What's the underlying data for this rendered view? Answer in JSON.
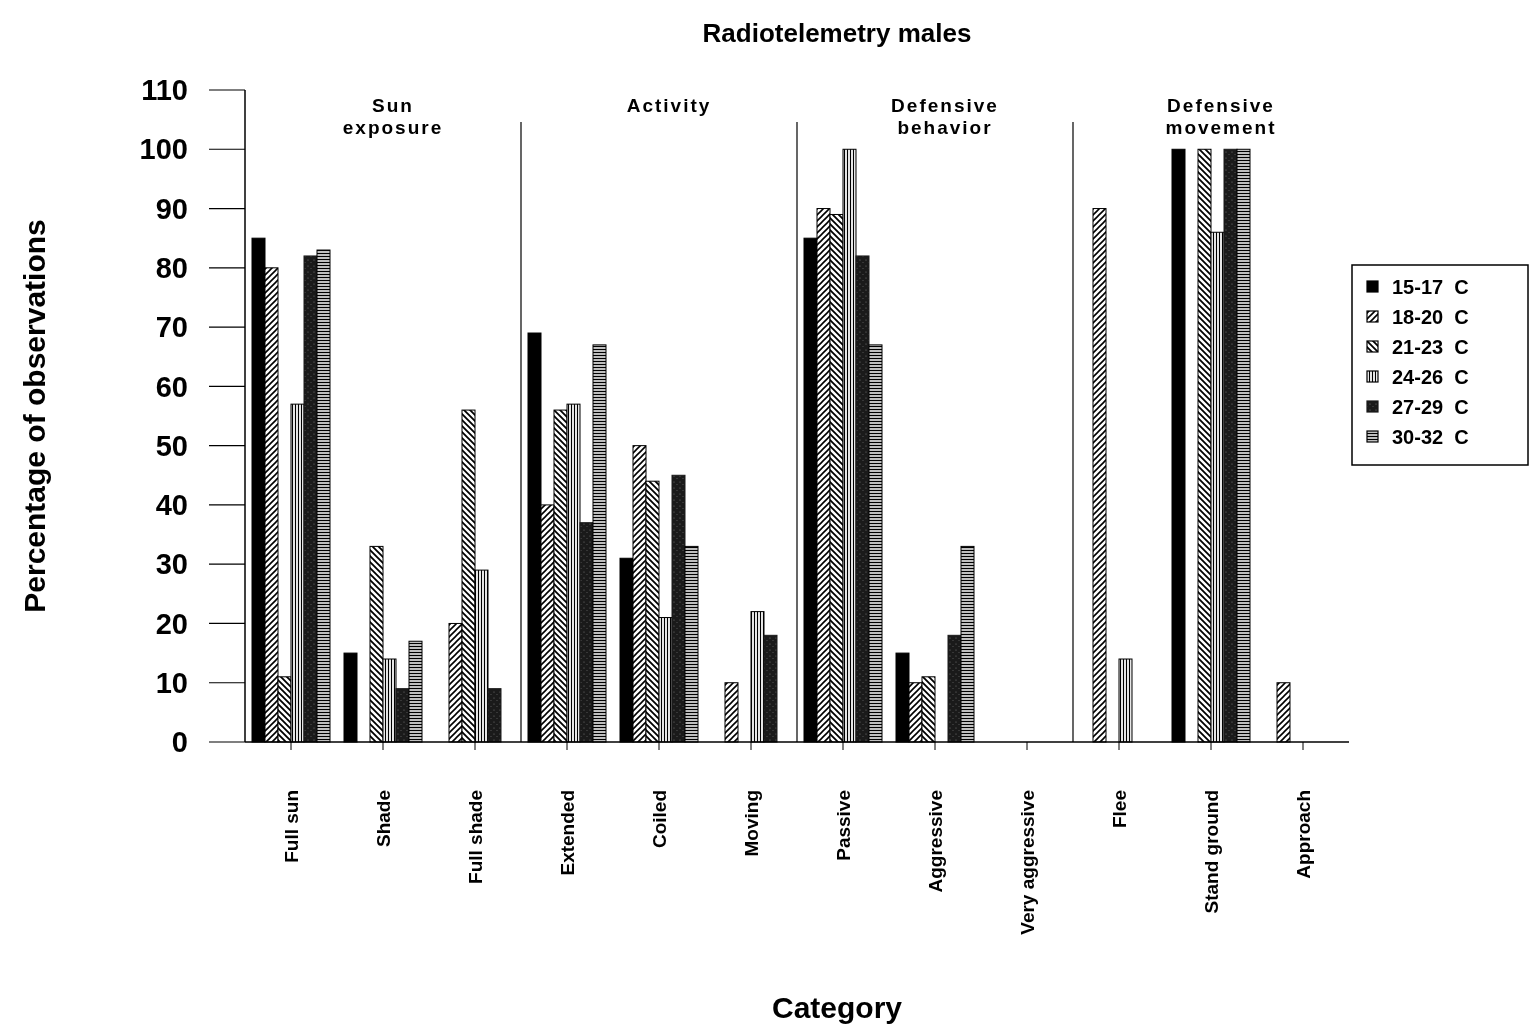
{
  "chart_data": {
    "type": "bar",
    "title": "Radiotelemetry males",
    "xlabel": "Category",
    "ylabel": "Percentage of observations",
    "categories": [
      "Full sun",
      "Shade",
      "Full shade",
      "Extended",
      "Coiled",
      "Moving",
      "Passive",
      "Aggressive",
      "Very aggressive",
      "Flee",
      "Stand ground",
      "Approach"
    ],
    "series": [
      {
        "name": "15-17  C",
        "color": "#000000",
        "values": [
          85,
          15,
          0,
          69,
          31,
          0,
          85,
          15,
          0,
          0,
          100,
          0
        ]
      },
      {
        "name": "18-20  C",
        "color": "#000000",
        "values": [
          80,
          0,
          20,
          40,
          50,
          10,
          90,
          10,
          0,
          90,
          0,
          10
        ]
      },
      {
        "name": "21-23  C",
        "color": "#000000",
        "values": [
          11,
          33,
          56,
          56,
          44,
          0,
          89,
          11,
          0,
          0,
          100,
          0
        ]
      },
      {
        "name": "24-26  C",
        "color": "#000000",
        "values": [
          57,
          14,
          29,
          57,
          21,
          22,
          100,
          0,
          0,
          14,
          86,
          0
        ]
      },
      {
        "name": "27-29  C",
        "color": "#1a1a1a",
        "values": [
          82,
          9,
          9,
          37,
          45,
          18,
          82,
          18,
          0,
          0,
          100,
          0
        ]
      },
      {
        "name": "30-32  C",
        "color": "#000000",
        "values": [
          83,
          17,
          0,
          67,
          33,
          0,
          67,
          33,
          0,
          0,
          100,
          0
        ]
      }
    ],
    "ylim": [
      0,
      110
    ],
    "yticks": [
      0,
      10,
      20,
      30,
      40,
      50,
      60,
      70,
      80,
      90,
      100,
      110
    ],
    "annotations": [
      "Sun exposure",
      "Activity",
      "Defensive behavior",
      "Defensive movement"
    ],
    "legend": "right",
    "grid": false
  }
}
